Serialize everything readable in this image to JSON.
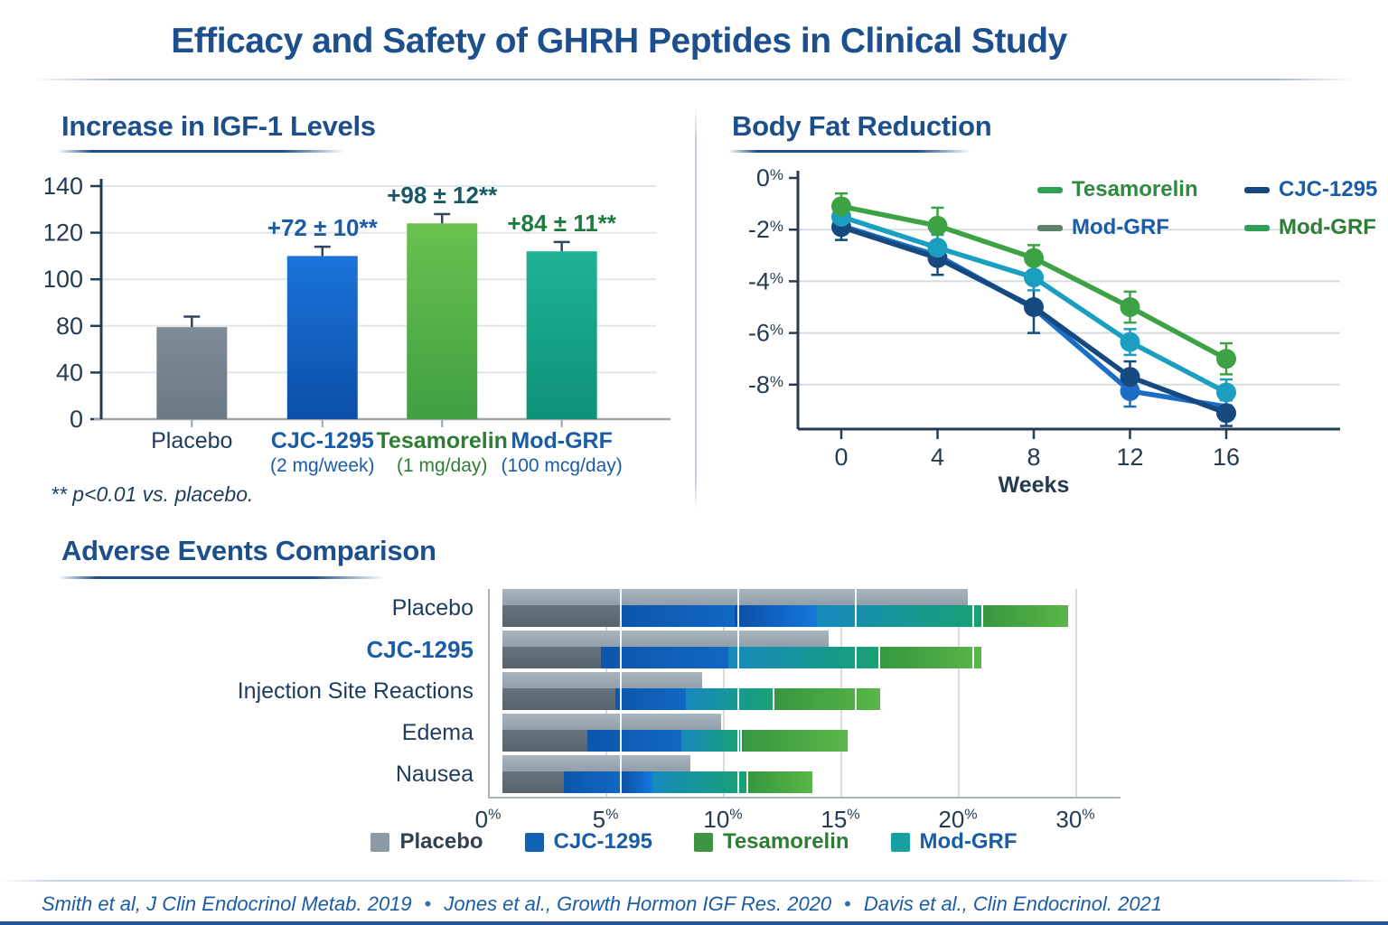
{
  "page": {
    "title": "Efficacy and Safety of GHRH Peptides in Clinical Study",
    "citations": [
      "Smith et al, J Clin Endocrinol Metab. 2019",
      "Jones et al., Growth Hormon IGF Res. 2020",
      "Davis et al., Clin Endocrinol. 2021"
    ],
    "separator": "•"
  },
  "colors": {
    "heading_blue": "#1d4f8c",
    "text_navy": "#1d3c5e",
    "axis_navy": "#243b52",
    "label_blue": "#1a5da6",
    "label_green": "#2e7d35",
    "gridline": "#dfe3e8"
  },
  "chart_data": [
    {
      "id": "igf",
      "type": "bar",
      "title": "Increase in IGF-1 Levels",
      "footnote": "** p<0.01 vs. placebo.",
      "y_ticks": [
        0,
        40,
        80,
        100,
        120,
        140
      ],
      "categories": [
        {
          "label": "Placebo",
          "sub": "",
          "color": "#1d3c5e",
          "bold": false
        },
        {
          "label": "CJC-1295",
          "sub": "(2 mg/week)",
          "color": "#1a5da6",
          "bold": true
        },
        {
          "label": "Tesamorelin",
          "sub": "(1 mg/day)",
          "color": "#2e7d35",
          "bold": true
        },
        {
          "label": "Mod-GRF",
          "sub": "(100 mcg/day)",
          "color": "#1a5da6",
          "bold": true
        }
      ],
      "values": [
        79,
        110,
        124,
        112
      ],
      "errors": [
        5,
        4,
        4,
        4
      ],
      "annotations": [
        "",
        "+72 ± 10**",
        "+98 ± 12**",
        "+84 ± 11**"
      ],
      "annotation_colors": [
        "",
        "#1a5da6",
        "#175766",
        "#1e7a40"
      ],
      "bar_colors": [
        [
          "#7e8b96",
          "#6c7a86"
        ],
        [
          "#1a73d9",
          "#0b4fa8"
        ],
        [
          "#6ac14f",
          "#3f9f42"
        ],
        [
          "#1db394",
          "#0e9177"
        ]
      ]
    },
    {
      "id": "bodyfat",
      "type": "line",
      "title": "Body Fat Reduction",
      "xlabel": "Weeks",
      "x": [
        0,
        4,
        8,
        12,
        16
      ],
      "y_tick_labels": [
        "0%",
        "-2%",
        "-4%",
        "-6%",
        "-8%"
      ],
      "y_tick_values": [
        0,
        -2,
        -4,
        -6,
        -8
      ],
      "ylim": [
        0,
        -9.7
      ],
      "series": [
        {
          "name": "Mod-GRF",
          "color": "#1a6fc4",
          "values": [
            -1.85,
            -3.0,
            -5.05,
            -8.25,
            -8.85
          ],
          "err": [
            0,
            0,
            0,
            0.6,
            0
          ],
          "dots": [
            0,
            0,
            0,
            1,
            0
          ]
        },
        {
          "name": "CJC-1295",
          "color": "#15497f",
          "values": [
            -1.9,
            -3.1,
            -5.0,
            -7.7,
            -9.1
          ],
          "err": [
            0.5,
            0.65,
            1.0,
            0.6,
            0.5
          ],
          "dots": [
            1,
            1,
            1,
            1,
            1
          ]
        },
        {
          "name": "Mod-GRF",
          "color": "#1b9fc0",
          "values": [
            -1.5,
            -2.7,
            -3.85,
            -6.35,
            -8.3
          ],
          "err": [
            0.4,
            0.5,
            0.5,
            0.5,
            0.5
          ],
          "dots": [
            1,
            1,
            1,
            1,
            1
          ]
        },
        {
          "name": "Tesamorelin",
          "color": "#3da244",
          "values": [
            -1.1,
            -1.85,
            -3.1,
            -5.0,
            -7.0
          ],
          "err": [
            0.5,
            0.7,
            0.5,
            0.6,
            0.6
          ],
          "dots": [
            1,
            1,
            1,
            1,
            1
          ]
        }
      ],
      "legend": [
        {
          "label": "Tesamorelin",
          "swatch": "#2fa152",
          "text_color": "#2e8a3e"
        },
        {
          "label": "CJC-1295",
          "swatch": "#15497f",
          "text_color": "#1a5da6"
        },
        {
          "label": "Mod-GRF",
          "swatch": "#5b8168",
          "text_color": "#1a5da6"
        },
        {
          "label": "Mod-GRF",
          "swatch": "#2f9e57",
          "text_color": "#2e7d35"
        }
      ]
    },
    {
      "id": "adverse",
      "type": "bar",
      "orientation": "horizontal",
      "title": "Adverse Events Comparison",
      "x_ticks": [
        "0%",
        "5%",
        "10%",
        "15%",
        "20%",
        "30%"
      ],
      "x_tick_values": [
        0,
        5,
        10,
        15,
        20,
        30
      ],
      "rows": [
        {
          "label": "Placebo",
          "label_color": "#1d3c5e",
          "label_bold": false,
          "shadow": 19.8,
          "segments": [
            {
              "c": "gray",
              "to": 5.0
            },
            {
              "c": "blue",
              "to": 9.9
            },
            {
              "c": "blue2",
              "to": 13.4
            },
            {
              "c": "teal",
              "to": 20.8
            },
            {
              "c": "green",
              "to": 28.0
            }
          ]
        },
        {
          "label": "CJC-1295",
          "label_color": "#1a5da6",
          "label_bold": true,
          "shadow": 13.9,
          "segments": [
            {
              "c": "gray",
              "to": 4.2
            },
            {
              "c": "blue",
              "to": 9.6
            },
            {
              "c": "teal",
              "to": 16.0
            },
            {
              "c": "green",
              "to": 20.6
            }
          ]
        },
        {
          "label": "Injection Site Reactions",
          "label_color": "#1d3c5e",
          "label_bold": false,
          "shadow": 8.5,
          "segments": [
            {
              "c": "gray",
              "to": 4.8
            },
            {
              "c": "blue",
              "to": 7.8
            },
            {
              "c": "teal",
              "to": 11.5
            },
            {
              "c": "green",
              "to": 16.0
            }
          ]
        },
        {
          "label": "Edema",
          "label_color": "#1d3c5e",
          "label_bold": false,
          "shadow": 9.3,
          "segments": [
            {
              "c": "gray",
              "to": 3.6
            },
            {
              "c": "blue",
              "to": 7.6
            },
            {
              "c": "teal",
              "to": 10.1
            },
            {
              "c": "green",
              "to": 14.6
            }
          ]
        },
        {
          "label": "Nausea",
          "label_color": "#1d3c5e",
          "label_bold": false,
          "shadow": 8.0,
          "segments": [
            {
              "c": "gray",
              "to": 2.6
            },
            {
              "c": "blue",
              "to": 5.0
            },
            {
              "c": "blue2",
              "to": 6.4
            },
            {
              "c": "teal",
              "to": 10.4
            },
            {
              "c": "green",
              "to": 13.1
            }
          ]
        }
      ],
      "segment_colors": {
        "gray": "linear-gradient(180deg,#66737d,#57646e)",
        "blue": "linear-gradient(90deg,#0d55ad,#1068c2)",
        "blue2": "linear-gradient(90deg,#0c4ea6,#1478dc)",
        "teal": "linear-gradient(90deg,#1789be,#17a273)",
        "green": "linear-gradient(90deg,#35973f,#5ab648)"
      },
      "legend": [
        {
          "label": "Placebo",
          "swatch": "#8c99a6",
          "text_color": "#33414e"
        },
        {
          "label": "CJC-1295",
          "swatch": "#1062b4",
          "text_color": "#1a5da6"
        },
        {
          "label": "Tesamorelin",
          "swatch": "#3e9440",
          "text_color": "#2e7d35"
        },
        {
          "label": "Mod-GRF",
          "swatch": "#16a0a0",
          "text_color": "#1a5da6"
        }
      ]
    }
  ]
}
